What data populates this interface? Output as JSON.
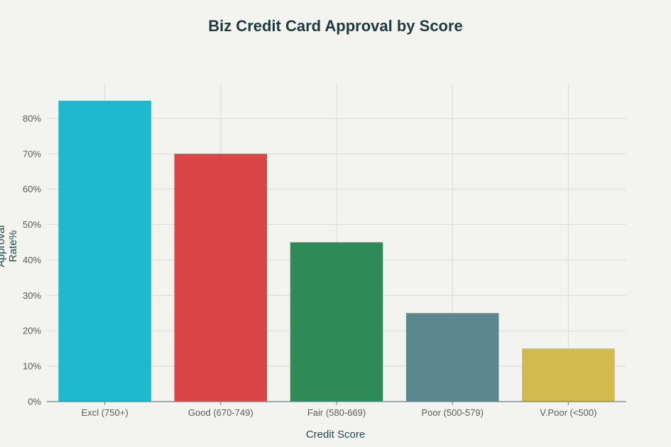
{
  "chart_data": {
    "type": "bar",
    "title": "Biz Credit Card Approval by Score",
    "xlabel": "Credit Score",
    "ylabel": "Approval Rate%",
    "categories": [
      "Excl (750+)",
      "Good (670-749)",
      "Fair (580-669)",
      "Poor (500-579)",
      "V.Poor (<500)"
    ],
    "values": [
      85,
      70,
      45,
      25,
      15
    ],
    "colors": [
      "#1fb8cd",
      "#db4545",
      "#2e8b57",
      "#5d878f",
      "#d2ba4c"
    ],
    "ylim": [
      0,
      90
    ],
    "yticks": [
      0,
      10,
      20,
      30,
      40,
      50,
      60,
      70,
      80
    ],
    "ytick_labels": [
      "0%",
      "10%",
      "20%",
      "30%",
      "40%",
      "50%",
      "60%",
      "70%",
      "80%"
    ],
    "grid": true,
    "legend": "none"
  }
}
